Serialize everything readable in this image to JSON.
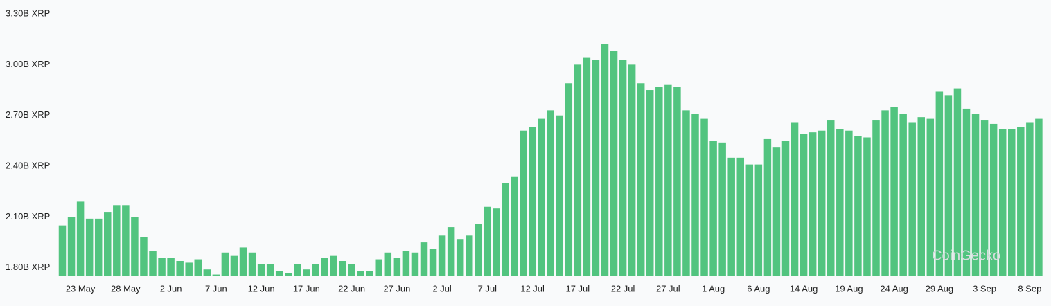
{
  "chart_data": {
    "type": "bar",
    "categories": [
      null,
      null,
      "23 May",
      null,
      null,
      null,
      null,
      "28 May",
      null,
      null,
      null,
      null,
      "2 Jun",
      null,
      null,
      null,
      null,
      "7 Jun",
      null,
      null,
      null,
      null,
      "12 Jun",
      null,
      null,
      null,
      null,
      "17 Jun",
      null,
      null,
      null,
      null,
      "22 Jun",
      null,
      null,
      null,
      null,
      "27 Jun",
      null,
      null,
      null,
      null,
      "2 Jul",
      null,
      null,
      null,
      null,
      "7 Jul",
      null,
      null,
      null,
      null,
      "12 Jul",
      null,
      null,
      null,
      null,
      "17 Jul",
      null,
      null,
      null,
      null,
      "22 Jul",
      null,
      null,
      null,
      null,
      "27 Jul",
      null,
      null,
      null,
      null,
      "1 Aug",
      null,
      null,
      null,
      null,
      "6 Aug",
      null,
      null,
      null,
      null,
      "14 Aug",
      null,
      null,
      null,
      null,
      "19 Aug",
      null,
      null,
      null,
      null,
      "24 Aug",
      null,
      null,
      null,
      null,
      "29 Aug",
      null,
      null,
      null,
      null,
      "3 Sep",
      null,
      null,
      null,
      null,
      "8 Sep",
      null
    ],
    "values": [
      2.05,
      2.1,
      2.19,
      2.09,
      2.09,
      2.13,
      2.17,
      2.17,
      2.1,
      1.98,
      1.9,
      1.86,
      1.86,
      1.84,
      1.83,
      1.85,
      1.79,
      1.76,
      1.89,
      1.87,
      1.92,
      1.89,
      1.82,
      1.82,
      1.78,
      1.77,
      1.82,
      1.79,
      1.82,
      1.86,
      1.87,
      1.84,
      1.82,
      1.78,
      1.78,
      1.85,
      1.89,
      1.86,
      1.9,
      1.89,
      1.95,
      1.91,
      1.99,
      2.04,
      1.97,
      1.99,
      2.06,
      2.16,
      2.15,
      2.3,
      2.34,
      2.61,
      2.63,
      2.68,
      2.73,
      2.7,
      2.89,
      3.0,
      3.04,
      3.03,
      3.12,
      3.08,
      3.03,
      3.0,
      2.89,
      2.85,
      2.87,
      2.88,
      2.87,
      2.73,
      2.71,
      2.68,
      2.55,
      2.54,
      2.45,
      2.45,
      2.41,
      2.41,
      2.56,
      2.51,
      2.55,
      2.66,
      2.59,
      2.6,
      2.61,
      2.67,
      2.62,
      2.61,
      2.58,
      2.57,
      2.67,
      2.73,
      2.75,
      2.71,
      2.66,
      2.69,
      2.68,
      2.84,
      2.82,
      2.86,
      2.74,
      2.71,
      2.67,
      2.65,
      2.62,
      2.62,
      2.63,
      2.66,
      2.68
    ],
    "color": "#52c47f",
    "ylim": [
      1.75,
      3.3
    ],
    "yticks": [
      {
        "value": 1.8,
        "label": "1.80B XRP"
      },
      {
        "value": 2.1,
        "label": "2.10B XRP"
      },
      {
        "value": 2.4,
        "label": "2.40B XRP"
      },
      {
        "value": 2.7,
        "label": "2.70B XRP"
      },
      {
        "value": 3.0,
        "label": "3.00B XRP"
      },
      {
        "value": 3.3,
        "label": "3.30B XRP"
      }
    ],
    "grid": false,
    "watermark": "CoinGecko"
  }
}
